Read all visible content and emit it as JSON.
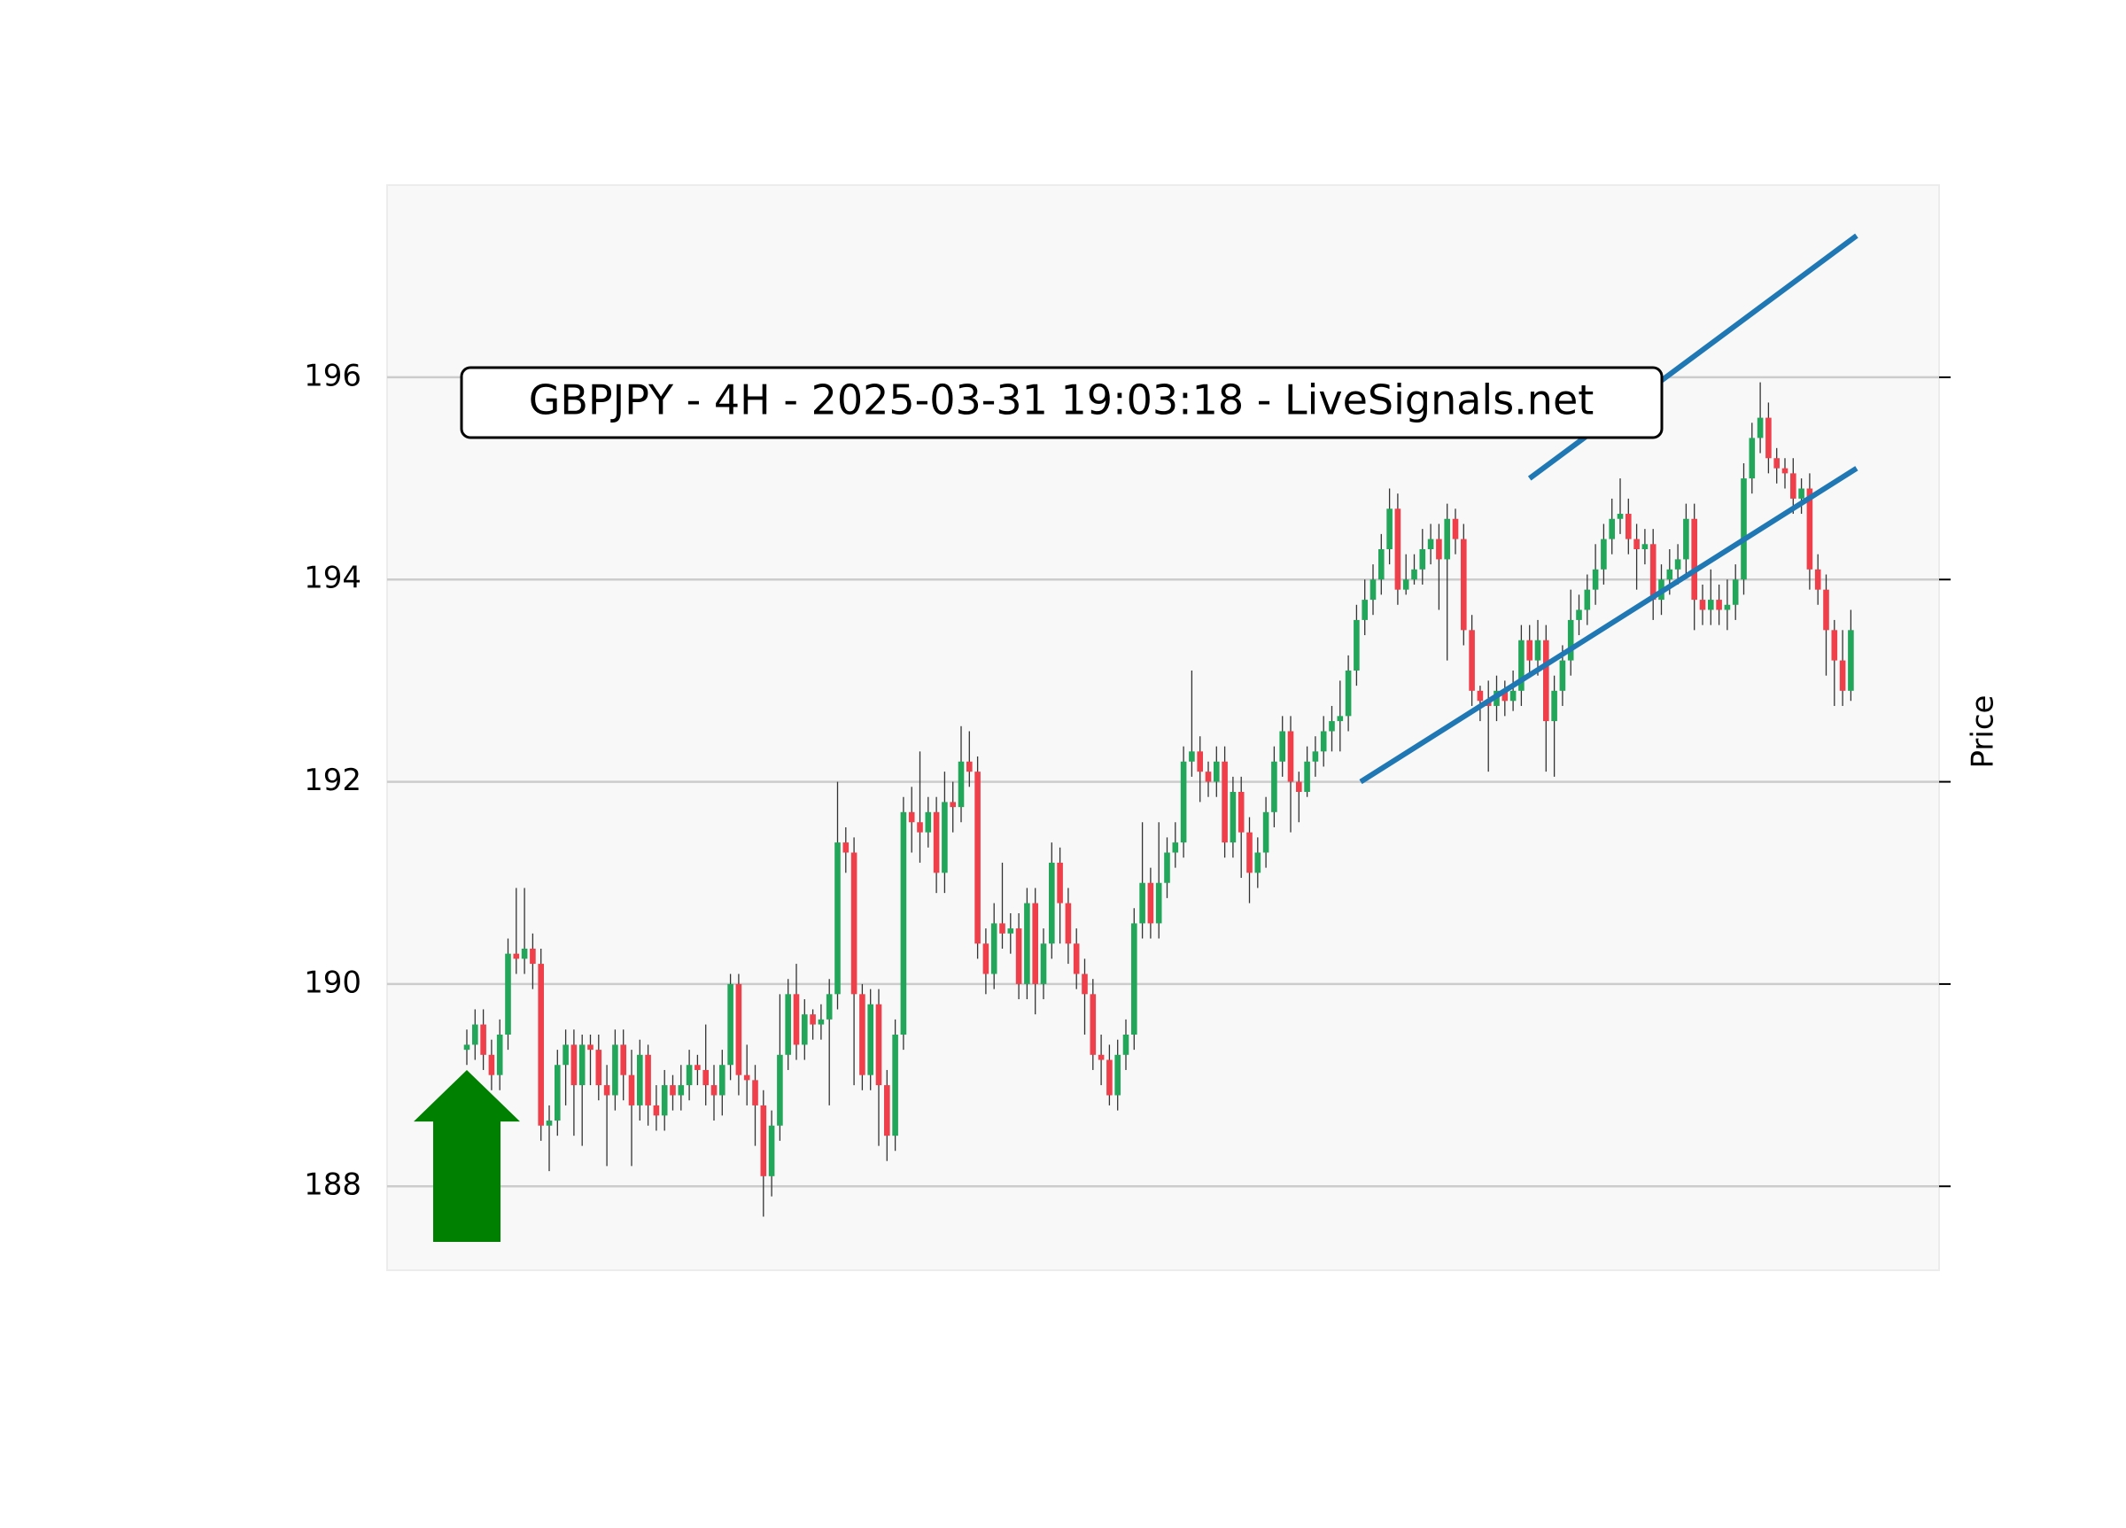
{
  "chart_data": {
    "type": "candlestick",
    "title": "GBPJPY - 4H - 2025-03-31 19:03:18 - LiveSignals.net",
    "y_label": "Price",
    "ylim": [
      187.17,
      197.9
    ],
    "yticks": [
      188,
      190,
      192,
      194,
      196
    ],
    "grid": true,
    "up_color": "#22a75a",
    "down_color": "#ef3f4a",
    "open": [
      189.35,
      189.4,
      189.6,
      189.3,
      189.1,
      189.5,
      190.3,
      190.25,
      190.35,
      190.2,
      188.6,
      188.65,
      189.2,
      189.4,
      189.0,
      189.4,
      189.35,
      189.0,
      188.9,
      189.4,
      189.1,
      188.8,
      189.3,
      188.8,
      188.7,
      189.0,
      188.9,
      189.0,
      189.2,
      189.15,
      189.0,
      188.9,
      189.2,
      190.0,
      189.1,
      189.05,
      188.8,
      188.1,
      188.6,
      189.3,
      189.9,
      189.4,
      189.7,
      189.6,
      189.65,
      189.9,
      191.4,
      191.3,
      189.9,
      189.1,
      189.8,
      189.0,
      188.5,
      189.5,
      191.7,
      191.6,
      191.5,
      191.7,
      191.1,
      191.8,
      191.75,
      192.2,
      192.1,
      190.4,
      190.1,
      190.6,
      190.5,
      190.55,
      190.0,
      190.8,
      190.0,
      190.4,
      191.2,
      190.8,
      190.4,
      190.1,
      189.9,
      189.3,
      189.25,
      188.9,
      189.3,
      189.5,
      190.6,
      191.0,
      190.6,
      191.0,
      191.3,
      191.4,
      192.2,
      192.3,
      192.1,
      192.0,
      192.2,
      191.4,
      191.9,
      191.5,
      191.1,
      191.3,
      191.7,
      192.2,
      192.5,
      192.0,
      191.9,
      192.2,
      192.3,
      192.5,
      192.6,
      192.65,
      193.1,
      193.6,
      193.8,
      194.0,
      194.3,
      194.7,
      193.9,
      194.0,
      194.1,
      194.3,
      194.4,
      194.2,
      194.6,
      194.4,
      193.5,
      192.9,
      192.8,
      192.75,
      192.9,
      192.8,
      192.9,
      193.4,
      193.2,
      193.4,
      192.6,
      192.9,
      193.2,
      193.6,
      193.7,
      193.9,
      194.1,
      194.4,
      194.6,
      194.65,
      194.4,
      194.3,
      194.35,
      193.8,
      194.0,
      194.1,
      194.2,
      194.6,
      193.8,
      193.7,
      193.8,
      193.7,
      193.75,
      194.0,
      195.0,
      195.4,
      195.6,
      195.2,
      195.1,
      195.05,
      194.8,
      194.9,
      194.1,
      193.9,
      193.5,
      193.2,
      192.9
    ],
    "high": [
      189.55,
      189.75,
      189.75,
      189.45,
      189.65,
      190.45,
      190.95,
      190.95,
      190.5,
      190.35,
      188.8,
      189.35,
      189.55,
      189.55,
      189.5,
      189.5,
      189.5,
      189.2,
      189.55,
      189.55,
      189.35,
      189.45,
      189.4,
      189.0,
      189.15,
      189.1,
      189.2,
      189.35,
      189.3,
      189.6,
      189.2,
      189.35,
      190.1,
      190.1,
      189.4,
      189.2,
      188.95,
      188.75,
      189.9,
      190.05,
      190.2,
      189.85,
      189.75,
      189.8,
      190.05,
      192.0,
      191.55,
      191.45,
      190.0,
      189.95,
      189.95,
      189.15,
      189.65,
      191.85,
      191.95,
      192.3,
      191.85,
      191.85,
      192.1,
      192.0,
      192.55,
      192.5,
      192.25,
      190.55,
      190.8,
      191.2,
      190.7,
      190.7,
      190.95,
      190.95,
      190.55,
      191.4,
      191.35,
      190.95,
      190.55,
      190.25,
      190.05,
      189.5,
      189.4,
      189.45,
      189.65,
      190.75,
      191.6,
      191.15,
      191.6,
      191.45,
      191.6,
      192.35,
      193.1,
      192.45,
      192.2,
      192.35,
      192.35,
      192.05,
      192.05,
      191.65,
      191.45,
      191.85,
      192.35,
      192.65,
      192.65,
      192.1,
      192.35,
      192.45,
      192.65,
      192.75,
      193.0,
      193.25,
      193.75,
      194.0,
      194.15,
      194.45,
      194.9,
      194.85,
      194.25,
      194.25,
      194.5,
      194.55,
      194.55,
      194.75,
      194.7,
      194.55,
      193.65,
      192.95,
      193.0,
      193.05,
      193.0,
      193.1,
      193.55,
      193.55,
      193.6,
      193.55,
      193.05,
      193.35,
      193.9,
      193.85,
      194.05,
      194.35,
      194.55,
      194.8,
      195.0,
      194.8,
      194.55,
      194.5,
      194.5,
      194.15,
      194.3,
      194.35,
      194.75,
      194.75,
      193.95,
      194.1,
      193.95,
      194.0,
      194.15,
      195.15,
      195.55,
      195.95,
      195.75,
      195.3,
      195.2,
      195.2,
      195.0,
      195.05,
      194.25,
      194.05,
      193.6,
      193.5,
      193.7
    ],
    "low": [
      189.2,
      189.25,
      189.15,
      188.95,
      188.95,
      189.35,
      190.1,
      190.1,
      189.95,
      188.45,
      188.15,
      188.5,
      188.8,
      188.5,
      188.4,
      189.0,
      188.85,
      188.2,
      188.75,
      188.85,
      188.2,
      188.65,
      188.6,
      188.55,
      188.55,
      188.75,
      188.75,
      188.85,
      189.0,
      188.8,
      188.65,
      188.7,
      189.05,
      188.9,
      188.8,
      188.4,
      187.7,
      187.9,
      188.45,
      189.15,
      189.25,
      189.25,
      189.45,
      189.45,
      188.8,
      189.75,
      191.1,
      189.0,
      188.95,
      188.95,
      188.4,
      188.25,
      188.35,
      189.35,
      191.3,
      191.2,
      191.35,
      190.9,
      190.9,
      191.5,
      191.6,
      191.95,
      190.25,
      189.9,
      189.95,
      190.35,
      190.3,
      189.85,
      189.85,
      189.7,
      189.85,
      190.25,
      190.4,
      190.2,
      189.95,
      189.5,
      189.15,
      189.0,
      188.8,
      188.75,
      189.15,
      189.35,
      190.45,
      190.45,
      190.45,
      190.85,
      191.15,
      191.25,
      192.05,
      191.8,
      191.85,
      191.85,
      191.25,
      191.25,
      191.05,
      190.8,
      190.95,
      191.15,
      191.55,
      192.05,
      191.5,
      191.6,
      191.85,
      192.05,
      192.15,
      192.3,
      192.3,
      192.5,
      192.95,
      193.45,
      193.65,
      193.85,
      194.15,
      193.75,
      193.85,
      193.95,
      193.95,
      194.15,
      193.7,
      193.2,
      194.25,
      193.35,
      192.75,
      192.6,
      192.1,
      192.6,
      192.65,
      192.7,
      192.75,
      193.05,
      193.05,
      192.1,
      192.05,
      192.75,
      193.05,
      193.45,
      193.55,
      193.75,
      193.95,
      194.25,
      194.45,
      194.25,
      193.9,
      194.15,
      193.6,
      193.65,
      193.85,
      193.95,
      194.05,
      193.5,
      193.55,
      193.55,
      193.55,
      193.5,
      193.6,
      193.85,
      194.85,
      195.25,
      195.05,
      194.95,
      194.9,
      194.65,
      194.65,
      193.9,
      193.75,
      193.05,
      192.75,
      192.75,
      192.8
    ],
    "close": [
      189.4,
      189.6,
      189.3,
      189.1,
      189.5,
      190.3,
      190.25,
      190.35,
      190.2,
      188.6,
      188.65,
      189.2,
      189.4,
      189.0,
      189.4,
      189.35,
      189.0,
      188.9,
      189.4,
      189.1,
      188.8,
      189.3,
      188.8,
      188.7,
      189.0,
      188.9,
      189.0,
      189.2,
      189.15,
      189.0,
      188.9,
      189.2,
      190.0,
      189.1,
      189.05,
      188.8,
      188.1,
      188.6,
      189.3,
      189.9,
      189.4,
      189.7,
      189.6,
      189.65,
      189.9,
      191.4,
      191.3,
      189.9,
      189.1,
      189.8,
      189.0,
      188.5,
      189.5,
      191.7,
      191.6,
      191.5,
      191.7,
      191.1,
      191.8,
      191.75,
      192.2,
      192.1,
      190.4,
      190.1,
      190.6,
      190.5,
      190.55,
      190.0,
      190.8,
      190.0,
      190.4,
      191.2,
      190.8,
      190.4,
      190.1,
      189.9,
      189.3,
      189.25,
      188.9,
      189.3,
      189.5,
      190.6,
      191.0,
      190.6,
      191.0,
      191.3,
      191.4,
      192.2,
      192.3,
      192.1,
      192.0,
      192.2,
      191.4,
      191.9,
      191.5,
      191.1,
      191.3,
      191.7,
      192.2,
      192.5,
      192.0,
      191.9,
      192.2,
      192.3,
      192.5,
      192.6,
      192.65,
      193.1,
      193.6,
      193.8,
      194.0,
      194.3,
      194.7,
      193.9,
      194.0,
      194.1,
      194.3,
      194.4,
      194.2,
      194.6,
      194.4,
      193.5,
      192.9,
      192.8,
      192.75,
      192.9,
      192.8,
      192.9,
      193.4,
      193.2,
      193.4,
      192.6,
      192.9,
      193.2,
      193.6,
      193.7,
      193.9,
      194.1,
      194.4,
      194.6,
      194.65,
      194.4,
      194.3,
      194.35,
      193.8,
      194.0,
      194.1,
      194.2,
      194.6,
      193.8,
      193.7,
      193.8,
      193.7,
      193.75,
      194.0,
      195.0,
      195.4,
      195.6,
      195.2,
      195.1,
      195.05,
      194.8,
      194.9,
      194.1,
      193.9,
      193.5,
      193.2,
      192.9,
      193.5
    ],
    "lines": [
      {
        "color": "#1f77b4",
        "x": [
          108.5,
          168.7
        ],
        "y": [
          192.0,
          195.1
        ]
      },
      {
        "color": "#1f77b4",
        "x": [
          129,
          168.7
        ],
        "y": [
          195.0,
          197.4
        ]
      }
    ],
    "arrow": {
      "color": "#008000",
      "x": 0,
      "y_base": 187.45,
      "y_tip": 189.15
    }
  }
}
